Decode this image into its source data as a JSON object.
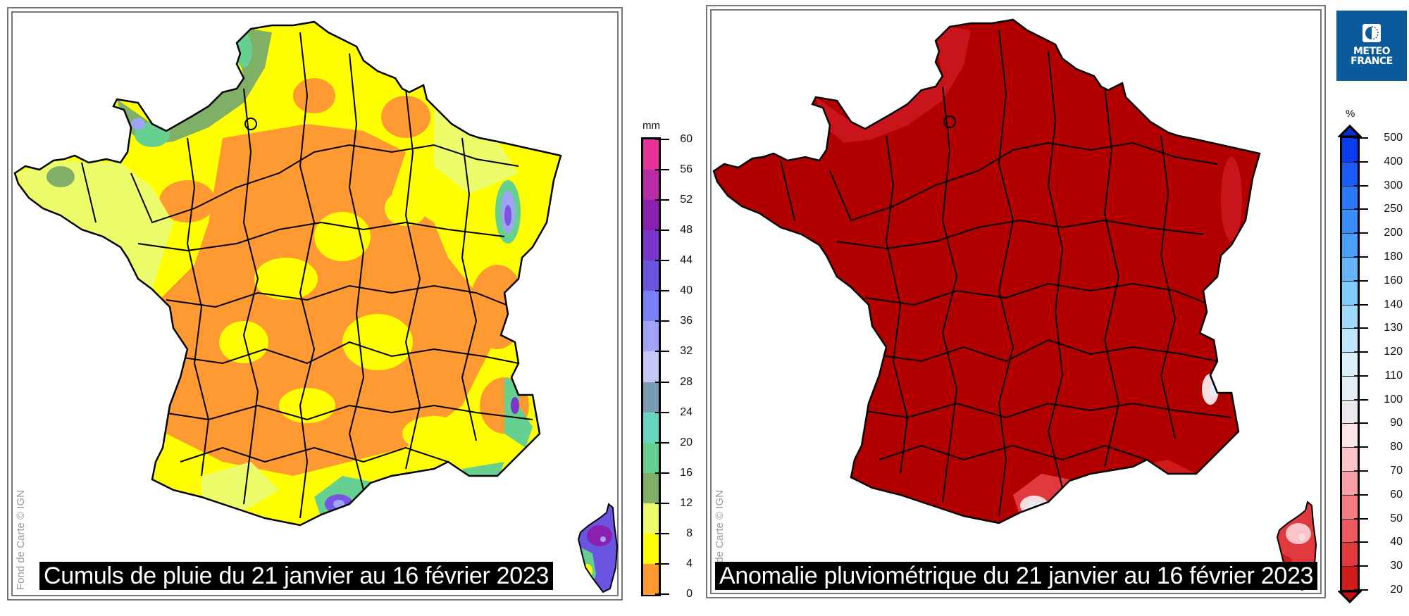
{
  "maps": [
    {
      "id": "cumuls",
      "title": "Cumuls de pluie du 21 janvier au 16 février 2023",
      "credit": "Fond de Carte © IGN",
      "legend": {
        "unit": "mm",
        "ticks": [
          "60",
          "56",
          "52",
          "48",
          "44",
          "40",
          "36",
          "32",
          "28",
          "24",
          "20",
          "16",
          "12",
          "8",
          "4",
          "0"
        ],
        "bands_top_to_bottom": [
          "#e8339a",
          "#b82aa6",
          "#8a1fb0",
          "#7a35cc",
          "#6a55e0",
          "#7a80f8",
          "#a0a4f8",
          "#c8c8f8",
          "#7a9cb0",
          "#66d6c0",
          "#66d090",
          "#80b068",
          "#ecfc6a",
          "#ffff00",
          "#ff9a33"
        ]
      },
      "dominant_colors": {
        "orange": "#ff9a33",
        "yellow": "#ffff00",
        "light_yellow": "#ecfc6a",
        "green": "#80b068",
        "teal": "#66d090",
        "purple": "#7a55e0"
      }
    },
    {
      "id": "anomalie",
      "title": "Anomalie pluviométrique du 21 janvier au 16 février 2023",
      "credit": "Fond de Carte © IGN",
      "legend": {
        "unit": "%",
        "ticks": [
          "500",
          "400",
          "300",
          "250",
          "200",
          "180",
          "160",
          "140",
          "130",
          "120",
          "110",
          "100",
          "90",
          "80",
          "70",
          "60",
          "50",
          "40",
          "30",
          "20"
        ],
        "bands_top_to_bottom": [
          "#0a3cf0",
          "#1c5cf4",
          "#2a78f8",
          "#3a8cf8",
          "#4aa0f8",
          "#64b4fa",
          "#80ccfc",
          "#a0dafc",
          "#c0e6fc",
          "#dcf0fc",
          "#e4eef6",
          "#ece8ee",
          "#fde4e6",
          "#fcc4c8",
          "#f8a0a6",
          "#f47c82",
          "#ec5a60",
          "#e03a3e",
          "#d01a1c"
        ],
        "over_color": "#0a2cd0",
        "under_color": "#c0100f"
      },
      "dominant_colors": {
        "deep_red": "#b00000",
        "red": "#c8141a",
        "pale": "#f6dde0"
      }
    }
  ],
  "logo": {
    "line1": "METEO",
    "line2": "FRANCE",
    "color": "#0a5a9c"
  }
}
